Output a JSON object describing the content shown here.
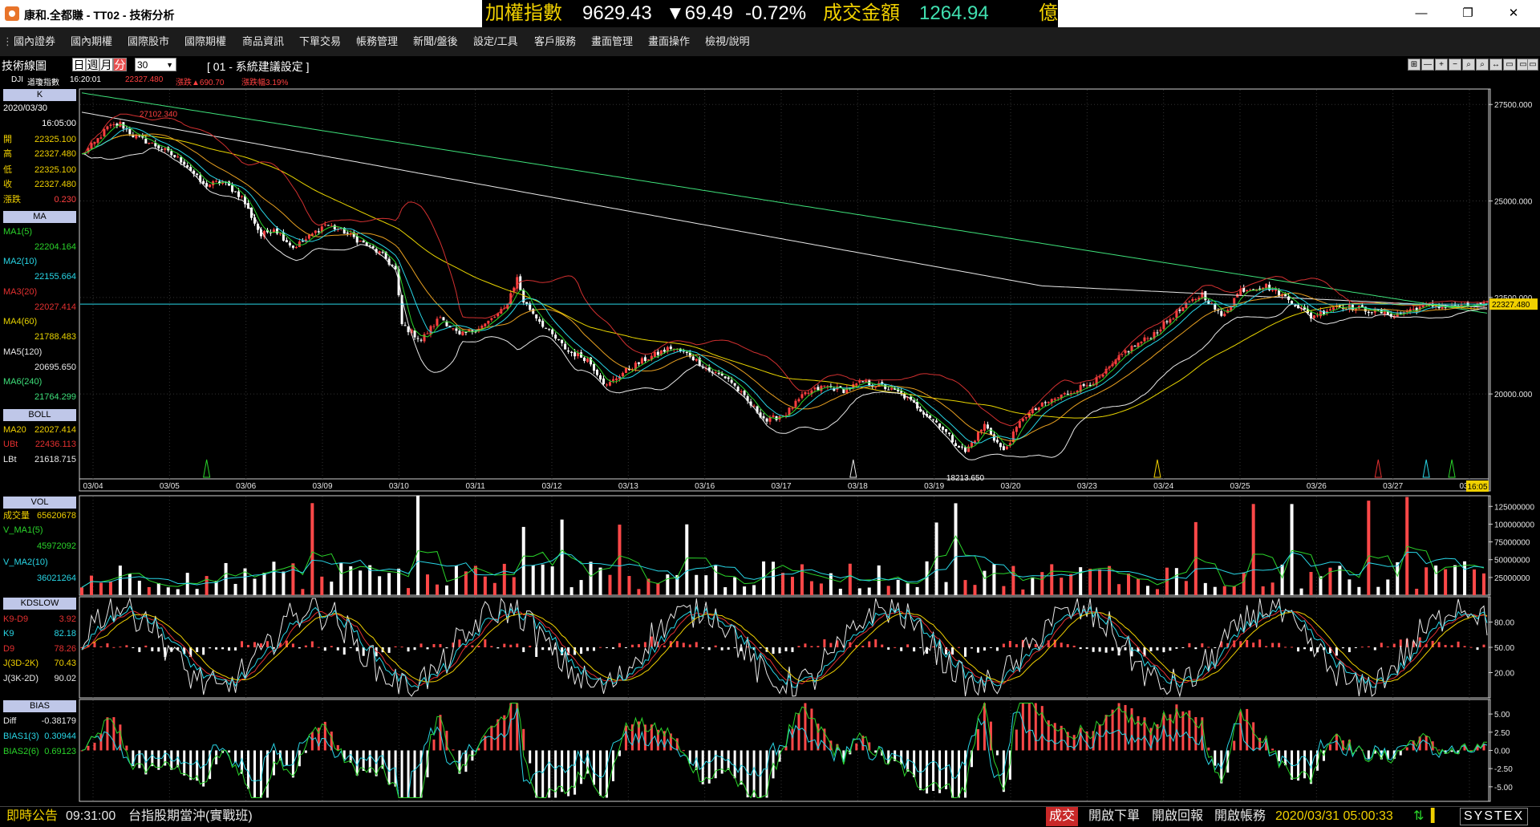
{
  "window": {
    "title": "康和.全都賺 - TT02 - 技術分析",
    "buttons": [
      "—",
      "❐",
      "✕"
    ]
  },
  "ticker": {
    "index_label": "加權指數",
    "index_value": "9629.43",
    "index_change": "▼69.49",
    "index_pct": "-0.72%",
    "turnover_label": "成交金額",
    "turnover_value": "1264.94",
    "turnover_unit": "億"
  },
  "menu": [
    "國內證券",
    "國內期權",
    "國際股市",
    "國際期權",
    "商品資訊",
    "下單交易",
    "帳務管理",
    "新聞/盤後",
    "設定/工具",
    "客戶服務",
    "畫面管理",
    "畫面操作",
    "檢視/說明"
  ],
  "toolbar": {
    "chart_type": "技術線圖",
    "periods": [
      "日",
      "週",
      "月",
      "分"
    ],
    "active_period": "分",
    "interval": "30",
    "preset": "[ 01 - 系統建議設定 ]",
    "symbol_code": "DJI",
    "symbol_name": "道瓊指數",
    "time": "16:20:01",
    "last": "22327.480",
    "change": "漲跌▲690.70",
    "change_pct": "漲跌幅3.19%"
  },
  "right_tools": [
    "⊞",
    "—",
    "+",
    "−",
    "⌕",
    "⌕",
    "↔",
    "▭",
    "▭",
    "▭",
    "✕"
  ],
  "left_panel": {
    "k": {
      "header": "K",
      "date": "2020/03/30",
      "time": "16:05:00",
      "rows": [
        {
          "label": "開",
          "value": "22325.100"
        },
        {
          "label": "高",
          "value": "22327.480"
        },
        {
          "label": "低",
          "value": "22325.100"
        },
        {
          "label": "收",
          "value": "22327.480"
        },
        {
          "label": "漲跌",
          "value": "0.230"
        }
      ]
    },
    "ma": {
      "header": "MA",
      "rows": [
        {
          "label": "MA1(5)",
          "value": "22204.164",
          "color": "#2ad42a"
        },
        {
          "label": "MA2(10)",
          "value": "22155.664",
          "color": "#28d6e6"
        },
        {
          "label": "MA3(20)",
          "value": "22027.414",
          "color": "#e43030"
        },
        {
          "label": "MA4(60)",
          "value": "21788.483",
          "color": "#e8d400"
        },
        {
          "label": "MA5(120)",
          "value": "20695.650",
          "color": "#e8e8e8"
        },
        {
          "label": "MA6(240)",
          "value": "21764.299",
          "color": "#3ee07a"
        }
      ]
    },
    "boll": {
      "header": "BOLL",
      "rows": [
        {
          "label": "MA20",
          "value": "22027.414",
          "color": "#f0d000"
        },
        {
          "label": "UBt",
          "value": "22436.113",
          "color": "#e43030"
        },
        {
          "label": "LBt",
          "value": "21618.715",
          "color": "#e8e8e8"
        }
      ]
    },
    "vol": {
      "header": "VOL",
      "rows": [
        {
          "label": "成交量",
          "value": "65620678",
          "color": "#f0d000"
        },
        {
          "label": "V_MA1(5)",
          "value": "45972092",
          "color": "#2ad42a"
        },
        {
          "label": "V_MA2(10)",
          "value": "36021264",
          "color": "#28d6e6"
        }
      ]
    },
    "kd": {
      "header": "KDSLOW",
      "rows": [
        {
          "label": "K9-D9",
          "value": "3.92",
          "color": "#e43030"
        },
        {
          "label": "K9",
          "value": "82.18",
          "color": "#28d6e6"
        },
        {
          "label": "D9",
          "value": "78.26",
          "color": "#e43030"
        },
        {
          "label": "J(3D-2K)",
          "value": "70.43",
          "color": "#f0d000"
        },
        {
          "label": "J(3K-2D)",
          "value": "90.02",
          "color": "#e8e8e8"
        }
      ]
    },
    "bias": {
      "header": "BIAS",
      "rows": [
        {
          "label": "Diff",
          "value": "-0.38179",
          "color": "#e8e8e8"
        },
        {
          "label": "BIAS1(3)",
          "value": "0.30944",
          "color": "#28d6e6"
        },
        {
          "label": "BIAS2(6)",
          "value": "0.69123",
          "color": "#2ad42a"
        }
      ]
    }
  },
  "chart_data": [
    {
      "type": "candlestick",
      "title": "K",
      "dates": [
        "03/04",
        "03/05",
        "03/06",
        "03/09",
        "03/10",
        "03/11",
        "03/12",
        "03/13",
        "03/16",
        "03/17",
        "03/18",
        "03/19",
        "03/20",
        "03/23",
        "03/24",
        "03/25",
        "03/26",
        "03/27",
        "03/30"
      ],
      "ylim": [
        17800,
        27900
      ],
      "yticks": [
        "27500.000",
        "25000.000",
        "22500.000",
        "20000.000"
      ],
      "ytick_values": [
        27500,
        25000,
        22500,
        20000
      ],
      "last_price_label": "22327.480",
      "last_price": 22327.48,
      "annotations": [
        {
          "text": "27102.340",
          "value": 27102.34
        },
        {
          "text": "18213.650",
          "value": 18213.65
        }
      ],
      "end_time": "16:05",
      "series": [
        {
          "name": "MA1(5)",
          "color": "#2ad42a"
        },
        {
          "name": "MA2(10)",
          "color": "#28d6e6"
        },
        {
          "name": "MA3(20)",
          "color": "#e43030"
        },
        {
          "name": "MA4(60)",
          "color": "#e8d400"
        },
        {
          "name": "MA5(120)",
          "color": "#e8e8e8"
        },
        {
          "name": "MA6(240)",
          "color": "#3ee07a"
        },
        {
          "name": "UBt",
          "color": "#d23030"
        },
        {
          "name": "LBt",
          "color": "#e8e8e8"
        }
      ],
      "anchors": [
        [
          0,
          26200
        ],
        [
          4,
          26500
        ],
        [
          8,
          26900
        ],
        [
          12,
          27000
        ],
        [
          16,
          26700
        ],
        [
          24,
          26400
        ],
        [
          32,
          26000
        ],
        [
          38,
          25400
        ],
        [
          44,
          25500
        ],
        [
          50,
          25100
        ],
        [
          56,
          24100
        ],
        [
          60,
          24300
        ],
        [
          66,
          23800
        ],
        [
          70,
          24000
        ],
        [
          76,
          24400
        ],
        [
          82,
          24200
        ],
        [
          88,
          23900
        ],
        [
          94,
          23600
        ],
        [
          98,
          23200
        ],
        [
          100,
          21800
        ],
        [
          106,
          21400
        ],
        [
          112,
          22000
        ],
        [
          118,
          21500
        ],
        [
          126,
          21800
        ],
        [
          132,
          22200
        ],
        [
          136,
          23000
        ],
        [
          138,
          22400
        ],
        [
          146,
          21600
        ],
        [
          152,
          21100
        ],
        [
          158,
          20900
        ],
        [
          164,
          20200
        ],
        [
          168,
          20500
        ],
        [
          176,
          20900
        ],
        [
          184,
          21200
        ],
        [
          190,
          21000
        ],
        [
          196,
          20600
        ],
        [
          202,
          20400
        ],
        [
          208,
          19800
        ],
        [
          214,
          19300
        ],
        [
          220,
          19500
        ],
        [
          226,
          20000
        ],
        [
          232,
          20200
        ],
        [
          238,
          20100
        ],
        [
          244,
          20300
        ],
        [
          250,
          20200
        ],
        [
          256,
          20000
        ],
        [
          262,
          19600
        ],
        [
          268,
          19200
        ],
        [
          272,
          18800
        ],
        [
          276,
          18500
        ],
        [
          282,
          19200
        ],
        [
          288,
          18500
        ],
        [
          294,
          19400
        ],
        [
          302,
          19800
        ],
        [
          310,
          20100
        ],
        [
          318,
          20400
        ],
        [
          326,
          21100
        ],
        [
          334,
          21500
        ],
        [
          342,
          22100
        ],
        [
          350,
          22600
        ],
        [
          356,
          22000
        ],
        [
          362,
          22700
        ],
        [
          370,
          22800
        ],
        [
          378,
          22400
        ],
        [
          384,
          22000
        ],
        [
          392,
          22300
        ],
        [
          400,
          22200
        ],
        [
          410,
          22050
        ],
        [
          420,
          22300
        ],
        [
          430,
          22250
        ],
        [
          439,
          22327
        ]
      ]
    },
    {
      "type": "bar",
      "title": "VOL",
      "yticks": [
        "125000000",
        "100000000",
        "75000000",
        "50000000",
        "25000000"
      ],
      "ytick_values": [
        125000000,
        100000000,
        75000000,
        50000000,
        25000000
      ],
      "ylim": [
        0,
        140000000
      ],
      "series": [
        {
          "name": "V_MA1(5)",
          "color": "#2ad42a"
        },
        {
          "name": "V_MA2(10)",
          "color": "#28d6e6"
        }
      ]
    },
    {
      "type": "line",
      "title": "KDSLOW",
      "yticks": [
        "80.00",
        "50.00",
        "20.00"
      ],
      "ytick_values": [
        80,
        50,
        20
      ],
      "ylim": [
        -10,
        110
      ],
      "series": [
        {
          "name": "K9",
          "color": "#28d6e6"
        },
        {
          "name": "D9",
          "color": "#e43030"
        },
        {
          "name": "J(3D-2K)",
          "color": "#f0d000"
        },
        {
          "name": "J(3K-2D)",
          "color": "#e8e8e8"
        }
      ]
    },
    {
      "type": "line",
      "title": "BIAS",
      "yticks": [
        "5.00",
        "2.50",
        "0.00",
        "-2.50",
        "-5.00"
      ],
      "ytick_values": [
        5,
        2.5,
        0,
        -2.5,
        -5
      ],
      "ylim": [
        -7,
        7
      ],
      "series": [
        {
          "name": "BIAS1(3)",
          "color": "#28d6e6"
        },
        {
          "name": "BIAS2(6)",
          "color": "#2ad42a"
        }
      ]
    }
  ],
  "status": {
    "label": "即時公告",
    "time": "09:31:00",
    "message": "台指股期當沖(實戰班)",
    "btn_deal": "成交",
    "btn_order": "開啟下單",
    "btn_report": "開啟回報",
    "btn_account": "開啟帳務",
    "datetime": "2020/03/31 05:00:33",
    "brand": "SYSTEX"
  }
}
